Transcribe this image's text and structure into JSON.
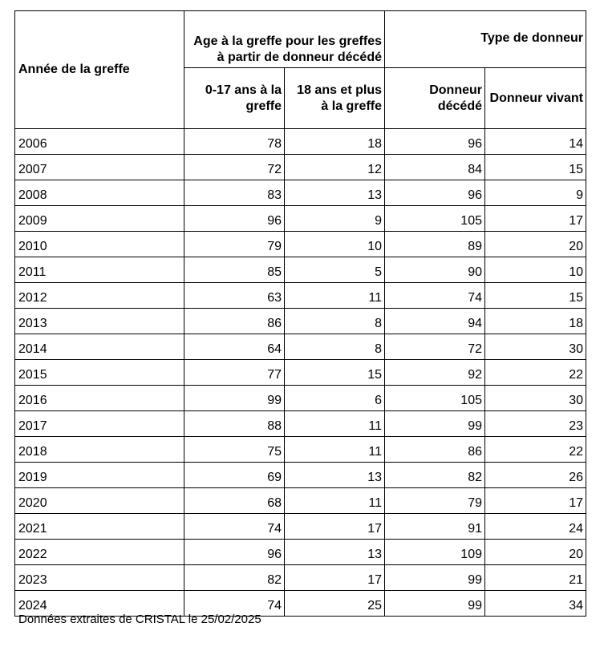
{
  "table": {
    "headers": {
      "year": "Année de la greffe",
      "age_group": "Age à la greffe pour les greffes à partir de donneur décédé",
      "donor_group": "Type de donneur",
      "age_0_17": "0-17 ans à la greffe",
      "age_18_plus": "18 ans et plus à la greffe",
      "deceased_donor": "Donneur décédé",
      "living_donor": "Donneur vivant"
    },
    "rows": [
      {
        "year": "2006",
        "age_0_17": "78",
        "age_18_plus": "18",
        "deceased": "96",
        "living": "14"
      },
      {
        "year": "2007",
        "age_0_17": "72",
        "age_18_plus": "12",
        "deceased": "84",
        "living": "15"
      },
      {
        "year": "2008",
        "age_0_17": "83",
        "age_18_plus": "13",
        "deceased": "96",
        "living": "9"
      },
      {
        "year": "2009",
        "age_0_17": "96",
        "age_18_plus": "9",
        "deceased": "105",
        "living": "17"
      },
      {
        "year": "2010",
        "age_0_17": "79",
        "age_18_plus": "10",
        "deceased": "89",
        "living": "20"
      },
      {
        "year": "2011",
        "age_0_17": "85",
        "age_18_plus": "5",
        "deceased": "90",
        "living": "10"
      },
      {
        "year": "2012",
        "age_0_17": "63",
        "age_18_plus": "11",
        "deceased": "74",
        "living": "15"
      },
      {
        "year": "2013",
        "age_0_17": "86",
        "age_18_plus": "8",
        "deceased": "94",
        "living": "18"
      },
      {
        "year": "2014",
        "age_0_17": "64",
        "age_18_plus": "8",
        "deceased": "72",
        "living": "30"
      },
      {
        "year": "2015",
        "age_0_17": "77",
        "age_18_plus": "15",
        "deceased": "92",
        "living": "22"
      },
      {
        "year": "2016",
        "age_0_17": "99",
        "age_18_plus": "6",
        "deceased": "105",
        "living": "30"
      },
      {
        "year": "2017",
        "age_0_17": "88",
        "age_18_plus": "11",
        "deceased": "99",
        "living": "23"
      },
      {
        "year": "2018",
        "age_0_17": "75",
        "age_18_plus": "11",
        "deceased": "86",
        "living": "22"
      },
      {
        "year": "2019",
        "age_0_17": "69",
        "age_18_plus": "13",
        "deceased": "82",
        "living": "26"
      },
      {
        "year": "2020",
        "age_0_17": "68",
        "age_18_plus": "11",
        "deceased": "79",
        "living": "17"
      },
      {
        "year": "2021",
        "age_0_17": "74",
        "age_18_plus": "17",
        "deceased": "91",
        "living": "24"
      },
      {
        "year": "2022",
        "age_0_17": "96",
        "age_18_plus": "13",
        "deceased": "109",
        "living": "20"
      },
      {
        "year": "2023",
        "age_0_17": "82",
        "age_18_plus": "17",
        "deceased": "99",
        "living": "21"
      },
      {
        "year": "2024",
        "age_0_17": "74",
        "age_18_plus": "25",
        "deceased": "99",
        "living": "34"
      }
    ]
  },
  "footer": {
    "source_note": "Données extraites de CRISTAL le 25/02/2025"
  }
}
